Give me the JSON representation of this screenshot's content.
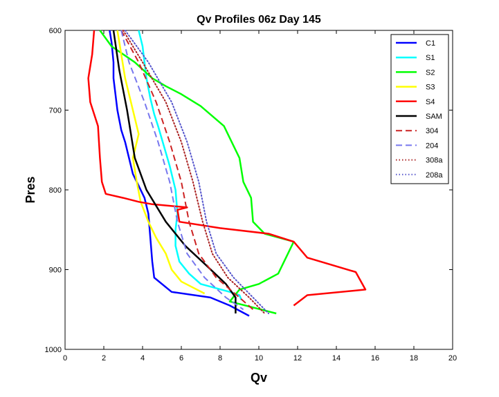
{
  "chart_data": {
    "type": "line",
    "title": "Qv Profiles 06z Day 145",
    "xlabel": "Qv",
    "ylabel": "Pres",
    "xlim": [
      0,
      20
    ],
    "ylim": [
      600,
      1000
    ],
    "y_reversed": true,
    "x_ticks": [
      0,
      2,
      4,
      6,
      8,
      10,
      12,
      14,
      16,
      18,
      20
    ],
    "y_ticks": [
      600,
      700,
      800,
      900,
      1000
    ],
    "grid": false,
    "legend_position": "top-right",
    "series": [
      {
        "name": "C1",
        "color": "#0000ff",
        "style": "solid",
        "points": [
          [
            2.3,
            600
          ],
          [
            2.4,
            615
          ],
          [
            2.5,
            640
          ],
          [
            2.5,
            660
          ],
          [
            2.6,
            680
          ],
          [
            2.7,
            700
          ],
          [
            2.9,
            725
          ],
          [
            3.1,
            740
          ],
          [
            3.3,
            760
          ],
          [
            3.5,
            780
          ],
          [
            3.8,
            795
          ],
          [
            4.1,
            810
          ],
          [
            4.3,
            830
          ],
          [
            4.4,
            860
          ],
          [
            4.5,
            890
          ],
          [
            4.6,
            910
          ],
          [
            5.5,
            928
          ],
          [
            7.5,
            935
          ],
          [
            8.5,
            945
          ],
          [
            9.5,
            958
          ]
        ]
      },
      {
        "name": "S1",
        "color": "#00ffff",
        "style": "solid",
        "points": [
          [
            3.8,
            600
          ],
          [
            4.0,
            620
          ],
          [
            4.1,
            640
          ],
          [
            4.2,
            660
          ],
          [
            4.4,
            685
          ],
          [
            4.6,
            705
          ],
          [
            4.8,
            720
          ],
          [
            5.1,
            745
          ],
          [
            5.4,
            770
          ],
          [
            5.7,
            800
          ],
          [
            5.8,
            830
          ],
          [
            5.7,
            850
          ],
          [
            5.7,
            870
          ],
          [
            5.9,
            890
          ],
          [
            6.4,
            905
          ],
          [
            7.0,
            918
          ],
          [
            8.5,
            928
          ],
          [
            9.0,
            932
          ],
          [
            9.1,
            938
          ]
        ]
      },
      {
        "name": "S2",
        "color": "#00ff00",
        "style": "solid",
        "points": [
          [
            1.8,
            600
          ],
          [
            2.4,
            620
          ],
          [
            3.6,
            640
          ],
          [
            4.5,
            660
          ],
          [
            5.2,
            670
          ],
          [
            6.0,
            680
          ],
          [
            7.0,
            695
          ],
          [
            8.2,
            720
          ],
          [
            9.0,
            760
          ],
          [
            9.2,
            790
          ],
          [
            9.6,
            810
          ],
          [
            9.7,
            840
          ],
          [
            10.3,
            855
          ],
          [
            11.8,
            865
          ],
          [
            11.5,
            880
          ],
          [
            11.0,
            905
          ],
          [
            10.0,
            918
          ],
          [
            9.0,
            925
          ],
          [
            8.5,
            940
          ],
          [
            10.9,
            955
          ]
        ]
      },
      {
        "name": "S3",
        "color": "#ffff00",
        "style": "solid",
        "points": [
          [
            2.7,
            600
          ],
          [
            2.9,
            630
          ],
          [
            3.1,
            660
          ],
          [
            3.4,
            690
          ],
          [
            3.8,
            730
          ],
          [
            3.5,
            760
          ],
          [
            3.7,
            790
          ],
          [
            3.9,
            815
          ],
          [
            4.3,
            840
          ],
          [
            4.7,
            860
          ],
          [
            5.2,
            880
          ],
          [
            5.5,
            900
          ],
          [
            6.0,
            915
          ],
          [
            7.2,
            930
          ]
        ]
      },
      {
        "name": "S4",
        "color": "#ff0000",
        "style": "solid",
        "points": [
          [
            1.5,
            600
          ],
          [
            1.4,
            630
          ],
          [
            1.2,
            660
          ],
          [
            1.3,
            690
          ],
          [
            1.7,
            720
          ],
          [
            1.8,
            760
          ],
          [
            1.9,
            790
          ],
          [
            2.1,
            805
          ],
          [
            3.0,
            810
          ],
          [
            3.8,
            815
          ],
          [
            4.5,
            818
          ],
          [
            6.3,
            822
          ],
          [
            5.8,
            825
          ],
          [
            5.9,
            840
          ],
          [
            8.0,
            848
          ],
          [
            10.5,
            855
          ],
          [
            11.8,
            865
          ],
          [
            12.5,
            885
          ],
          [
            15.0,
            903
          ],
          [
            15.5,
            925
          ],
          [
            12.5,
            932
          ],
          [
            11.8,
            945
          ]
        ]
      },
      {
        "name": "SAM",
        "color": "#000000",
        "style": "solid",
        "points": [
          [
            2.5,
            600
          ],
          [
            2.8,
            650
          ],
          [
            3.2,
            700
          ],
          [
            3.6,
            760
          ],
          [
            4.2,
            800
          ],
          [
            5.2,
            840
          ],
          [
            6.2,
            870
          ],
          [
            7.3,
            895
          ],
          [
            8.3,
            918
          ],
          [
            8.8,
            935
          ],
          [
            8.8,
            955
          ]
        ]
      },
      {
        "name": "304",
        "color": "#cc2222",
        "style": "dashed",
        "points": [
          [
            2.9,
            600
          ],
          [
            3.8,
            640
          ],
          [
            4.7,
            690
          ],
          [
            5.4,
            740
          ],
          [
            6.0,
            790
          ],
          [
            6.4,
            840
          ],
          [
            6.9,
            880
          ],
          [
            7.8,
            910
          ],
          [
            9.0,
            935
          ],
          [
            9.7,
            950
          ]
        ]
      },
      {
        "name": "204",
        "color": "#7777ee",
        "style": "dashed",
        "points": [
          [
            2.9,
            600
          ],
          [
            3.3,
            640
          ],
          [
            4.1,
            690
          ],
          [
            4.8,
            740
          ],
          [
            5.4,
            790
          ],
          [
            5.8,
            840
          ],
          [
            6.3,
            880
          ],
          [
            7.2,
            910
          ],
          [
            8.3,
            935
          ],
          [
            9.2,
            950
          ]
        ]
      },
      {
        "name": "308a",
        "color": "#aa2222",
        "style": "dotted",
        "points": [
          [
            3.0,
            600
          ],
          [
            4.0,
            640
          ],
          [
            5.2,
            690
          ],
          [
            6.0,
            740
          ],
          [
            6.6,
            790
          ],
          [
            7.1,
            840
          ],
          [
            7.6,
            880
          ],
          [
            8.4,
            910
          ],
          [
            9.5,
            935
          ],
          [
            10.3,
            955
          ]
        ]
      },
      {
        "name": "208a",
        "color": "#5555cc",
        "style": "dotted",
        "points": [
          [
            3.1,
            600
          ],
          [
            4.3,
            640
          ],
          [
            5.5,
            690
          ],
          [
            6.3,
            740
          ],
          [
            6.9,
            790
          ],
          [
            7.3,
            840
          ],
          [
            7.8,
            880
          ],
          [
            8.7,
            910
          ],
          [
            9.7,
            935
          ],
          [
            10.5,
            955
          ]
        ]
      }
    ]
  }
}
